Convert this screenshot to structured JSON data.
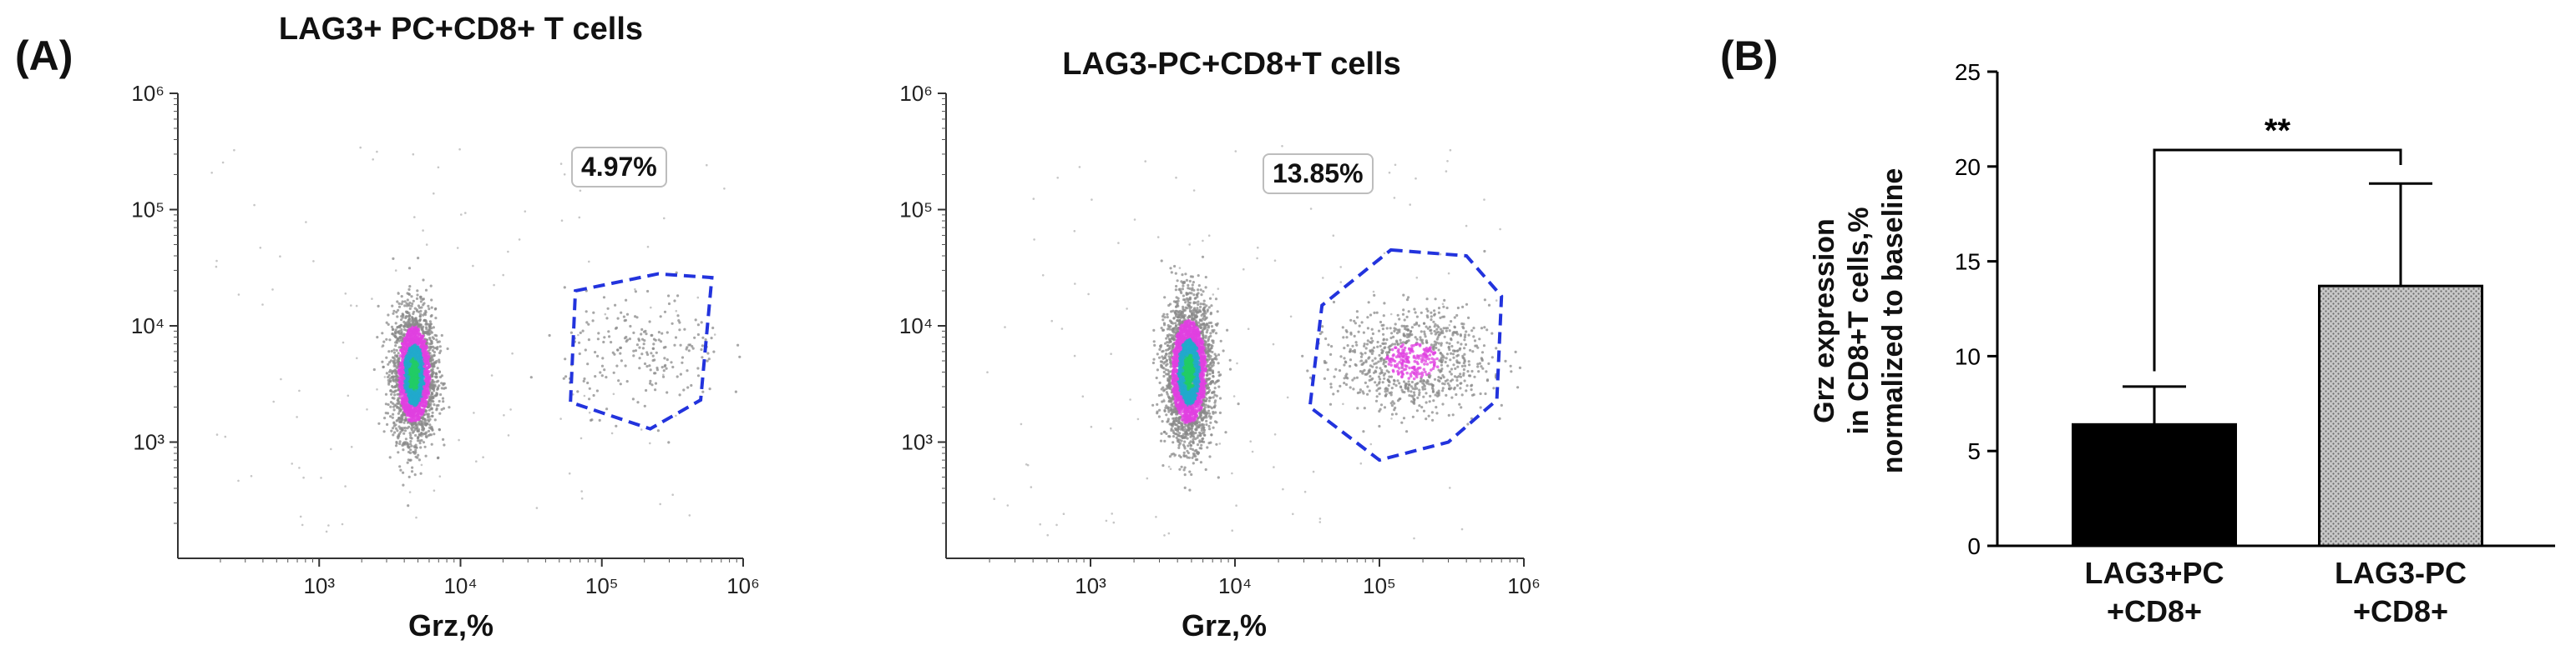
{
  "labels": {
    "panel_a": "(A)",
    "panel_b": "(B)"
  },
  "chart_data": [
    {
      "type": "scatter",
      "title": "LAG3+ PC+CD8+ T cells",
      "xlabel": "Grz,%",
      "ylabel": "",
      "x_scale": "log",
      "y_scale": "log",
      "xlim": [
        100,
        1000000
      ],
      "ylim": [
        100,
        1000000
      ],
      "x_ticks": [
        "10³",
        "10⁴",
        "10⁵",
        "10⁶"
      ],
      "y_ticks": [
        "10³",
        "10⁴",
        "10⁵",
        "10⁶"
      ],
      "gate_label": "4.97%",
      "gate_polygon": [
        [
          65000,
          20000
        ],
        [
          250000,
          28000
        ],
        [
          600000,
          26000
        ],
        [
          500000,
          2300
        ],
        [
          220000,
          1300
        ],
        [
          60000,
          2200
        ]
      ],
      "clusters": [
        {
          "cx": 4700,
          "cy": 3800,
          "sx": 0.075,
          "sy": 0.28,
          "n": 2600
        },
        {
          "cx": 200000,
          "cy": 6000,
          "sx": 0.28,
          "sy": 0.25,
          "n": 220
        }
      ],
      "grid": false
    },
    {
      "type": "scatter",
      "title": "LAG3-PC+CD8+T cells",
      "xlabel": "Grz,%",
      "ylabel": "",
      "x_scale": "log",
      "y_scale": "log",
      "xlim": [
        100,
        1000000
      ],
      "ylim": [
        100,
        1000000
      ],
      "x_ticks": [
        "10³",
        "10⁴",
        "10⁵",
        "10⁶"
      ],
      "y_ticks": [
        "10³",
        "10⁴",
        "10⁵",
        "10⁶"
      ],
      "gate_label": "13.85%",
      "gate_polygon": [
        [
          120000,
          45000
        ],
        [
          400000,
          40000
        ],
        [
          700000,
          18000
        ],
        [
          650000,
          2300
        ],
        [
          300000,
          1000
        ],
        [
          100000,
          700
        ],
        [
          33000,
          2000
        ],
        [
          40000,
          15000
        ]
      ],
      "clusters": [
        {
          "cx": 4800,
          "cy": 4000,
          "sx": 0.08,
          "sy": 0.3,
          "n": 3000
        },
        {
          "cx": 170000,
          "cy": 5000,
          "sx": 0.26,
          "sy": 0.22,
          "n": 900
        }
      ],
      "grid": false
    },
    {
      "type": "bar",
      "title": "",
      "categories": [
        "LAG3+PC\n+CD8+",
        "LAG3-PC\n+CD8+"
      ],
      "values": [
        6.4,
        13.7
      ],
      "errors": [
        2.0,
        5.4
      ],
      "fills": [
        "#000000",
        "#c8c8c8"
      ],
      "ylabel": "Grz expression\nin  CD8+T cells,%\nnormalized to baseline",
      "xlabel": "",
      "ylim": [
        0,
        25
      ],
      "y_ticks": [
        "0",
        "5",
        "10",
        "15",
        "20",
        "25"
      ],
      "significance": "**",
      "grid": false,
      "legend": "none"
    }
  ],
  "colors": {
    "gate": "#2233dd",
    "density_low": "#8a8a8a",
    "density_mid": "#e040e0",
    "density_high": "#22aacc",
    "density_peak": "#22cc66"
  }
}
